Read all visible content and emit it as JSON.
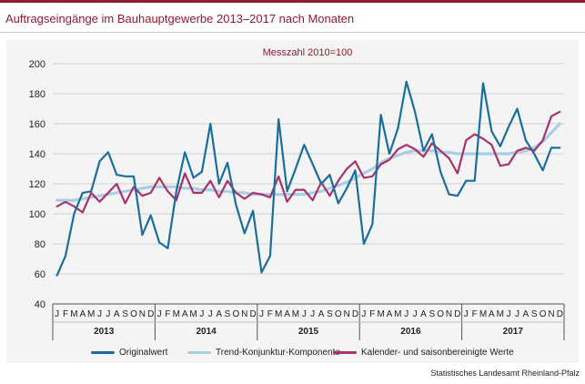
{
  "title": "Auftragseingänge im Bauhauptgewerbe 2013–2017 nach Monaten",
  "source": "Statistisches Landesamt Rheinland-Pfalz",
  "colors": {
    "original": "#1a6e9c",
    "trend": "#a8cfe3",
    "adjusted": "#a8326e",
    "brand": "#8c1c2e"
  },
  "chart_data": {
    "type": "line",
    "subtitle": "Messzahl 2010=100",
    "ylim": [
      40,
      200
    ],
    "yticks": [
      40,
      60,
      80,
      100,
      120,
      140,
      160,
      180,
      200
    ],
    "month_labels": [
      "J",
      "F",
      "M",
      "A",
      "M",
      "J",
      "J",
      "A",
      "S",
      "O",
      "N",
      "D"
    ],
    "years": [
      "2013",
      "2014",
      "2015",
      "2016",
      "2017"
    ],
    "grid": "horizontal",
    "legend_position": "bottom",
    "series": [
      {
        "name": "Originalwert",
        "key": "original",
        "values": [
          59,
          72,
          100,
          114,
          115,
          135,
          141,
          126,
          125,
          125,
          86,
          99,
          81,
          77,
          115,
          141,
          124,
          128,
          160,
          120,
          134,
          106,
          87,
          102,
          61,
          72,
          163,
          115,
          130,
          146,
          133,
          120,
          126,
          107,
          117,
          129,
          80,
          93,
          166,
          140,
          157,
          188,
          168,
          142,
          153,
          128,
          113,
          112,
          122,
          122,
          187,
          155,
          145,
          158,
          170,
          149,
          140,
          129,
          144,
          144
        ]
      },
      {
        "name": "Trend-Konjunktur-Komponente",
        "key": "trend",
        "values": [
          109,
          109,
          109,
          110,
          111,
          112,
          113,
          114,
          115,
          116,
          117,
          118,
          118,
          118,
          118,
          117,
          117,
          116,
          116,
          115,
          115,
          114,
          114,
          113,
          113,
          113,
          113,
          113,
          113,
          113,
          114,
          115,
          117,
          119,
          121,
          124,
          127,
          130,
          134,
          137,
          139,
          141,
          142,
          142,
          142,
          141,
          141,
          140,
          140,
          140,
          140,
          140,
          140,
          140,
          141,
          142,
          144,
          148,
          154,
          160
        ]
      },
      {
        "name": "Kalender- und saisonbereinigte Werte",
        "key": "adjusted",
        "values": [
          105,
          108,
          105,
          101,
          114,
          108,
          114,
          120,
          107,
          118,
          112,
          114,
          124,
          115,
          109,
          127,
          114,
          114,
          122,
          111,
          122,
          114,
          110,
          114,
          113,
          111,
          125,
          108,
          116,
          116,
          109,
          121,
          112,
          122,
          130,
          135,
          124,
          125,
          133,
          136,
          143,
          146,
          143,
          138,
          147,
          142,
          137,
          127,
          149,
          153,
          150,
          146,
          132,
          133,
          142,
          144,
          142,
          149,
          165,
          168
        ]
      }
    ]
  }
}
